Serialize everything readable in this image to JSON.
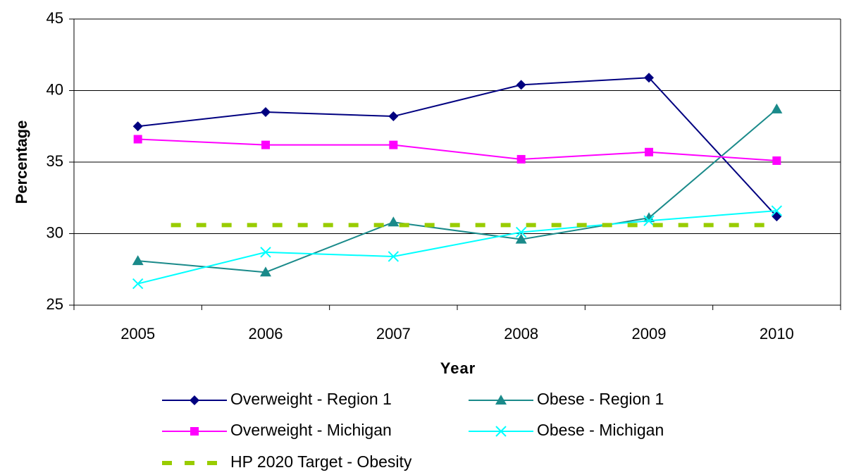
{
  "chart_data": {
    "type": "line",
    "x_label": "Year",
    "y_label": "Percentage",
    "categories": [
      "2005",
      "2006",
      "2007",
      "2008",
      "2009",
      "2010"
    ],
    "ylim": [
      25,
      45
    ],
    "yticks": [
      25,
      30,
      35,
      40,
      45
    ],
    "grid": true,
    "series": [
      {
        "name": "Overweight - Region 1",
        "color": "#000080",
        "marker": "diamond",
        "values": [
          37.5,
          38.5,
          38.2,
          40.4,
          40.9,
          31.2
        ]
      },
      {
        "name": "Obese - Region 1",
        "color": "#1a8a8a",
        "marker": "triangle",
        "values": [
          28.1,
          27.3,
          30.8,
          29.6,
          31.1,
          38.7
        ]
      },
      {
        "name": "Overweight - Michigan",
        "color": "#ff00ff",
        "marker": "square",
        "values": [
          36.6,
          36.2,
          36.2,
          35.2,
          35.7,
          35.1
        ]
      },
      {
        "name": "Obese - Michigan",
        "color": "#00ffff",
        "marker": "x",
        "values": [
          26.5,
          28.7,
          28.4,
          30.1,
          30.9,
          31.6
        ]
      },
      {
        "name": "HP 2020 Target - Obesity",
        "color": "#99cc00",
        "marker": "none",
        "dashed": true,
        "values": [
          30.6,
          30.6,
          30.6,
          30.6,
          30.6,
          30.6
        ]
      }
    ]
  }
}
